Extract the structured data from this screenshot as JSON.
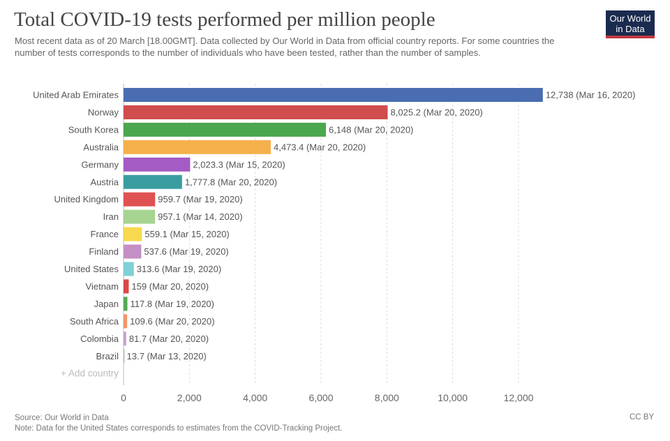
{
  "logo": {
    "text": "Our World in Data",
    "line1": "Our World",
    "line2": "in Data"
  },
  "footer": {
    "source": "Source: Our World in Data",
    "note": "Note: Data for the United States corresponds to estimates from the COVID-Tracking Project.",
    "license": "CC BY"
  },
  "add_country": "+ Add country",
  "chart_data": {
    "type": "bar",
    "orientation": "horizontal",
    "title": "Total COVID-19 tests performed per million people",
    "subtitle": "Most recent data as of 20 March [18.00GMT]. Data collected by Our World in Data from official country reports. For some countries the number of tests corresponds to the number of individuals who have been tested, rather than the number of samples.",
    "categories": [
      "United Arab Emirates",
      "Norway",
      "South Korea",
      "Australia",
      "Germany",
      "Austria",
      "United Kingdom",
      "Iran",
      "France",
      "Finland",
      "United States",
      "Vietnam",
      "Japan",
      "South Africa",
      "Colombia",
      "Brazil"
    ],
    "values": [
      12738,
      8025.2,
      6148,
      4473.4,
      2023.3,
      1777.8,
      959.7,
      957.1,
      559.1,
      537.6,
      313.6,
      159,
      117.8,
      109.6,
      81.7,
      13.7
    ],
    "value_labels": [
      "12,738",
      "8,025.2",
      "6,148",
      "4,473.4",
      "2,023.3",
      "1,777.8",
      "959.7",
      "957.1",
      "559.1",
      "537.6",
      "313.6",
      "159",
      "117.8",
      "109.6",
      "81.7",
      "13.7"
    ],
    "dates": [
      "Mar 16, 2020",
      "Mar 20, 2020",
      "Mar 20, 2020",
      "Mar 20, 2020",
      "Mar 15, 2020",
      "Mar 20, 2020",
      "Mar 19, 2020",
      "Mar 14, 2020",
      "Mar 15, 2020",
      "Mar 19, 2020",
      "Mar 19, 2020",
      "Mar 20, 2020",
      "Mar 19, 2020",
      "Mar 20, 2020",
      "Mar 20, 2020",
      "Mar 13, 2020"
    ],
    "colors": [
      "#4a6db2",
      "#d14c4c",
      "#4ba64e",
      "#f5b04c",
      "#a45bc3",
      "#3a9ea1",
      "#e05252",
      "#a7d491",
      "#f8d84e",
      "#c48fc4",
      "#80d0d8",
      "#d94848",
      "#54aa54",
      "#f0956a",
      "#c9a1d1",
      "#bbbbbb"
    ],
    "xticks": [
      0,
      2000,
      4000,
      6000,
      8000,
      10000,
      12000
    ],
    "xtick_labels": [
      "0",
      "2,000",
      "4,000",
      "6,000",
      "8,000",
      "10,000",
      "12,000"
    ],
    "xlim": [
      0,
      12738
    ],
    "grid": "vertical dashed",
    "legend": "none"
  }
}
